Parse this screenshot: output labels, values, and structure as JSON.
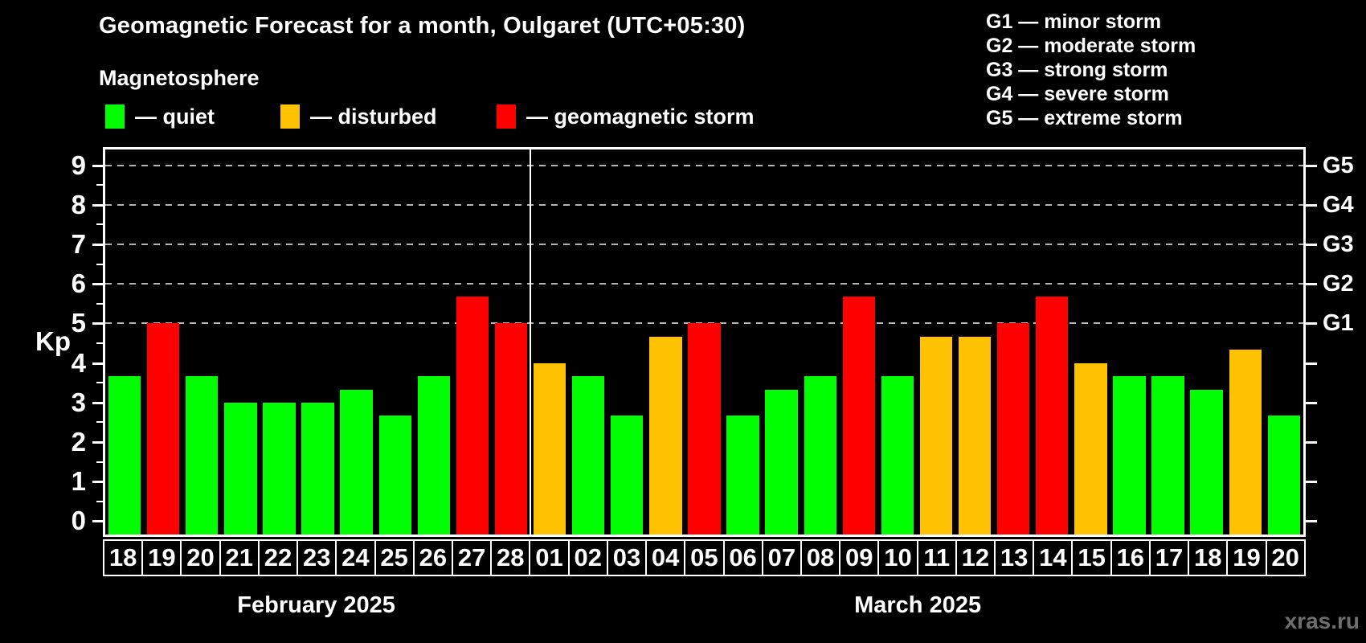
{
  "header": {
    "title": "Geomagnetic Forecast for a month, Oulgaret (UTC+05:30)",
    "subtitle": "Magnetosphere"
  },
  "legend": [
    {
      "name": "quiet",
      "label": "— quiet",
      "color": "#00ff00"
    },
    {
      "name": "disturbed",
      "label": "— disturbed",
      "color": "#ffc200"
    },
    {
      "name": "storm",
      "label": "— geomagnetic storm",
      "color": "#ff0000"
    }
  ],
  "storm_scale_legend": [
    "G1 — minor storm",
    "G2 — moderate storm",
    "G3 — strong storm",
    "G4 — severe storm",
    "G5 — extreme storm"
  ],
  "watermark": "xras.ru",
  "colors": {
    "quiet": "#00ff00",
    "disturbed": "#ffc200",
    "storm": "#ff0000",
    "axis": "#ffffff",
    "grid": "#b4b4b4",
    "background": "#000000",
    "watermark": "#6e6e6e"
  },
  "chart_data": {
    "type": "bar",
    "title": "Geomagnetic Forecast for a month, Oulgaret (UTC+05:30)",
    "ylabel": "Kp",
    "ylim": [
      0,
      9
    ],
    "yticks": [
      0,
      1,
      2,
      3,
      4,
      5,
      6,
      7,
      8,
      9
    ],
    "gridlines_at": [
      5,
      6,
      7,
      8,
      9
    ],
    "grid": "dashed horizontal lines at storm levels only",
    "legend_position": "top-left",
    "right_axis": [
      {
        "value": 5,
        "label": "G1"
      },
      {
        "value": 6,
        "label": "G2"
      },
      {
        "value": 7,
        "label": "G3"
      },
      {
        "value": 8,
        "label": "G4"
      },
      {
        "value": 9,
        "label": "G5"
      }
    ],
    "months": [
      {
        "label": "February 2025",
        "days": [
          "18",
          "19",
          "20",
          "21",
          "22",
          "23",
          "24",
          "25",
          "26",
          "27",
          "28"
        ],
        "values": [
          3.67,
          5,
          3.67,
          3,
          3,
          3,
          3.33,
          2.67,
          3.67,
          5.67,
          5
        ],
        "categories": [
          "quiet",
          "storm",
          "quiet",
          "quiet",
          "quiet",
          "quiet",
          "quiet",
          "quiet",
          "quiet",
          "storm",
          "storm"
        ]
      },
      {
        "label": "March 2025",
        "days": [
          "01",
          "02",
          "03",
          "04",
          "05",
          "06",
          "07",
          "08",
          "09",
          "10",
          "11",
          "12",
          "13",
          "14",
          "15",
          "16",
          "17",
          "18",
          "19",
          "20"
        ],
        "values": [
          4,
          3.67,
          2.67,
          4.67,
          5,
          2.67,
          3.33,
          3.67,
          5.67,
          3.67,
          4.67,
          4.67,
          5,
          5.67,
          4,
          3.67,
          3.67,
          3.33,
          4.33,
          2.67
        ],
        "categories": [
          "disturbed",
          "quiet",
          "quiet",
          "disturbed",
          "storm",
          "quiet",
          "quiet",
          "quiet",
          "storm",
          "quiet",
          "disturbed",
          "disturbed",
          "storm",
          "storm",
          "disturbed",
          "quiet",
          "quiet",
          "quiet",
          "disturbed",
          "quiet"
        ]
      }
    ]
  }
}
